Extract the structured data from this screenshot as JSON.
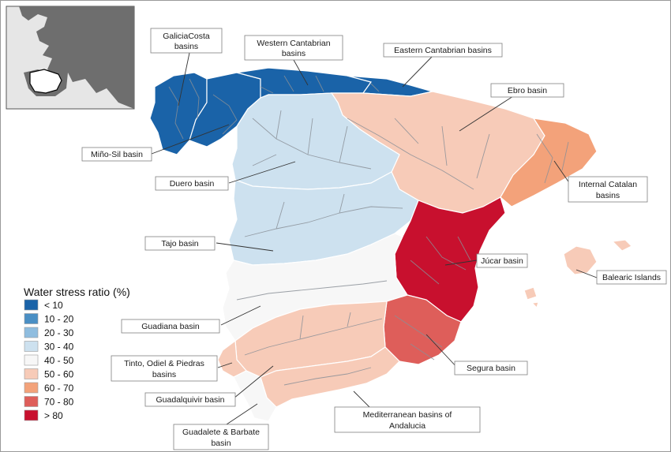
{
  "legend": {
    "title": "Water stress ratio (%)",
    "classes": [
      {
        "label": "< 10",
        "color": "#1a63a8"
      },
      {
        "label": "10 - 20",
        "color": "#4a8fc4"
      },
      {
        "label": "20 - 30",
        "color": "#8fbddf"
      },
      {
        "label": "30 - 40",
        "color": "#cde1ef"
      },
      {
        "label": "40 - 50",
        "color": "#f7f7f7"
      },
      {
        "label": "50 - 60",
        "color": "#f7cbb8"
      },
      {
        "label": "60 - 70",
        "color": "#f3a27a"
      },
      {
        "label": "70 - 80",
        "color": "#de5e5a"
      },
      {
        "label": "> 80",
        "color": "#c8102e"
      }
    ]
  },
  "basins": {
    "galicia_costa": {
      "label_lines": [
        "GaliciaCosta",
        "basins"
      ],
      "stress_class": "< 10"
    },
    "western_cantabrian": {
      "label_lines": [
        "Western Cantabrian",
        "basins"
      ],
      "stress_class": "< 10"
    },
    "eastern_cantabrian": {
      "label_lines": [
        "Eastern Cantabrian basins"
      ],
      "stress_class": "< 10"
    },
    "mino_sil": {
      "label_lines": [
        "Miño-Sil basin"
      ],
      "stress_class": "< 10"
    },
    "ebro": {
      "label_lines": [
        "Ebro basin"
      ],
      "stress_class": "50 - 60"
    },
    "internal_catalan": {
      "label_lines": [
        "Internal Catalan",
        "basins"
      ],
      "stress_class": "60 - 70"
    },
    "duero": {
      "label_lines": [
        "Duero basin"
      ],
      "stress_class": "30 - 40"
    },
    "tajo": {
      "label_lines": [
        "Tajo basin"
      ],
      "stress_class": "30 - 40"
    },
    "jucar": {
      "label_lines": [
        "Júcar basin"
      ],
      "stress_class": "> 80"
    },
    "balearic": {
      "label_lines": [
        "Balearic Islands"
      ],
      "stress_class": "50 - 60"
    },
    "guadiana": {
      "label_lines": [
        "Guadiana basin"
      ],
      "stress_class": "40 - 50"
    },
    "segura": {
      "label_lines": [
        "Segura basin"
      ],
      "stress_class": "70 - 80"
    },
    "tinto_odiel": {
      "label_lines": [
        "Tinto, Odiel & Piedras",
        "basins"
      ],
      "stress_class": "50 - 60"
    },
    "guadalquivir": {
      "label_lines": [
        "Guadalquivir basin"
      ],
      "stress_class": "50 - 60"
    },
    "mediterranean_andalucia": {
      "label_lines": [
        "Mediterranean basins of",
        "Andalucia"
      ],
      "stress_class": "50 - 60"
    },
    "guadalete_barbate": {
      "label_lines": [
        "Guadalete & Barbate",
        "basin"
      ],
      "stress_class": "40 - 50"
    }
  },
  "colors": {
    "inset_sea": "#e6e6e6",
    "inset_land": "#6e6e6e",
    "inset_highlight": "#ffffff"
  }
}
